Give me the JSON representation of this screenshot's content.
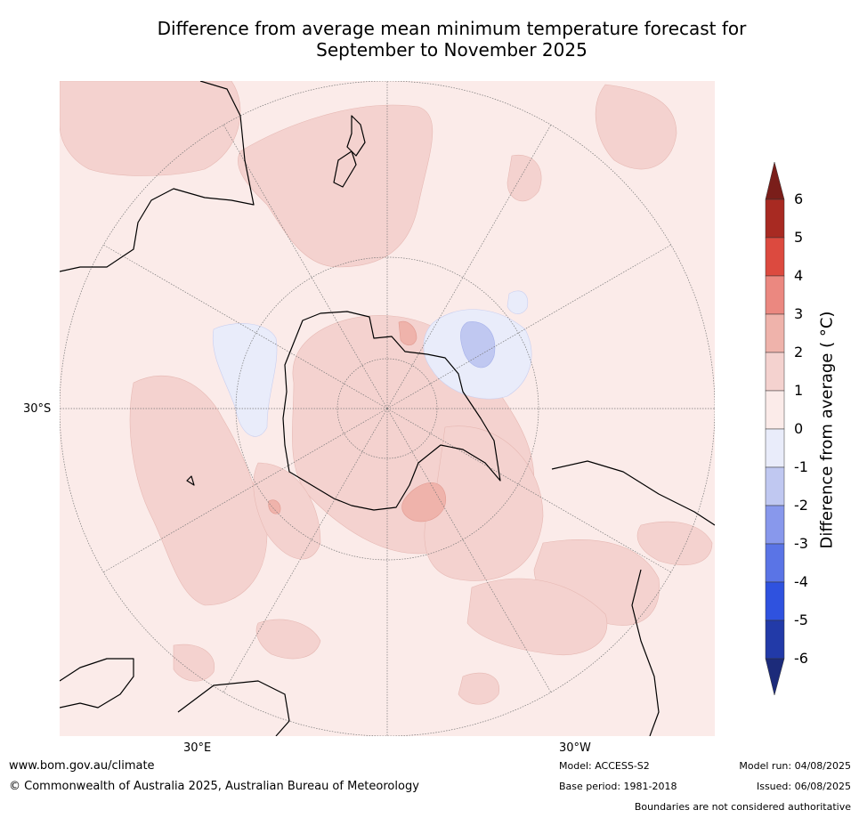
{
  "title": {
    "line1": "Difference from average mean minimum temperature forecast for",
    "line2": "September to November 2025"
  },
  "graticule": {
    "lat_label": "30°S",
    "lon_labels": [
      "30°E",
      "30°W"
    ]
  },
  "colorbar": {
    "title": "Difference from average ( °C)",
    "ticks": [
      "6",
      "5",
      "4",
      "3",
      "2",
      "1",
      "0",
      "-1",
      "-2",
      "-3",
      "-4",
      "-5",
      "-6"
    ],
    "colors": {
      "over": "#7a1e1a",
      "5_6": "#a82a22",
      "4_5": "#dc4a3f",
      "3_4": "#eb8880",
      "2_3": "#efb3ab",
      "1_2": "#f4d2cf",
      "0_1": "#fbebe9",
      "m1_0": "#e9ecfa",
      "m2_m1": "#c0c8f1",
      "m3_m2": "#8898ec",
      "m4_m3": "#5a74e6",
      "m5_m4": "#2f52df",
      "m6_m5": "#223aa8",
      "under": "#1c2b7a"
    }
  },
  "footer": {
    "url": "www.bom.gov.au/climate",
    "copyright": "© Commonwealth of Australia 2025, Australian Bureau of Meteorology",
    "model": "Model: ACCESS-S2",
    "base_period": "Base period: 1981-2018",
    "model_run": "Model run: 04/08/2025",
    "issued": "Issued: 06/08/2025",
    "disclaimer": "Boundaries are not considered authoritative"
  }
}
